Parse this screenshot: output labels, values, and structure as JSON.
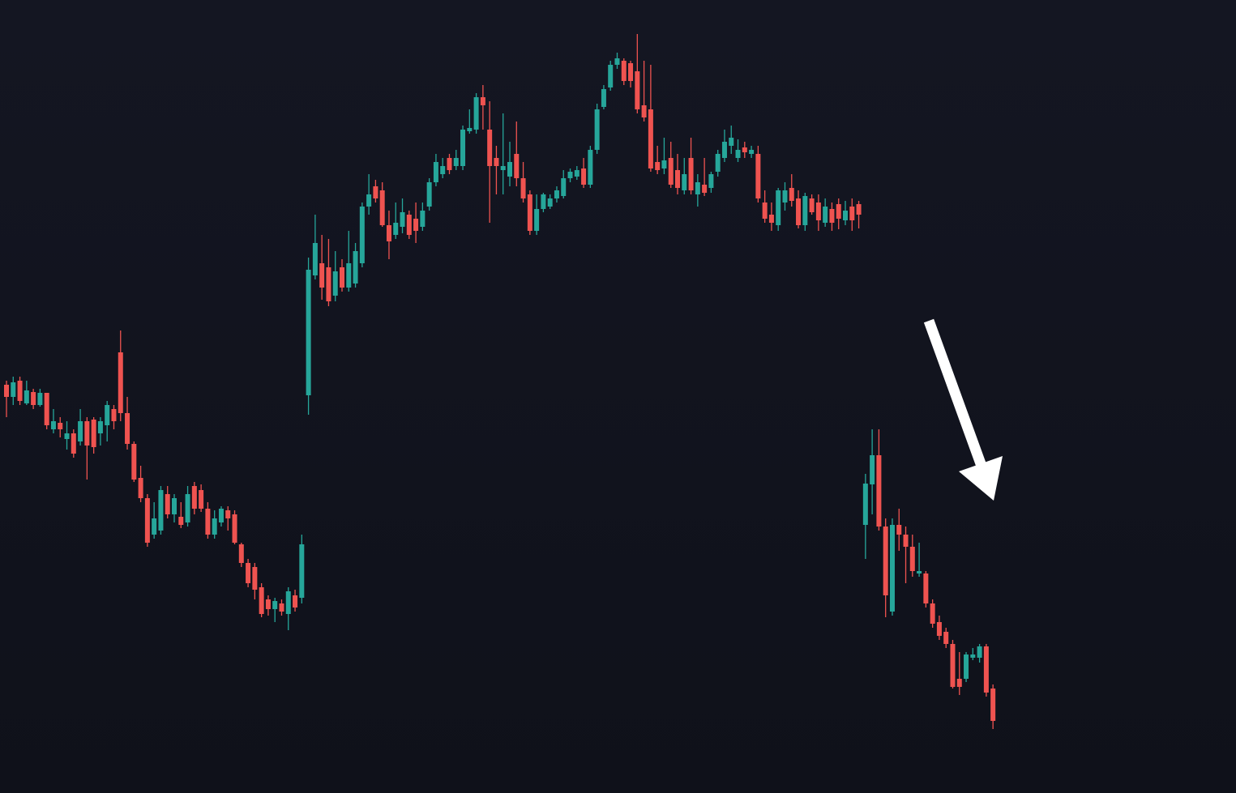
{
  "chart_data": {
    "type": "candlestick",
    "up_color": "#26a69a",
    "down_color": "#ef5350",
    "ylim": [
      0,
      980
    ],
    "open": [
      505,
      490,
      510,
      482,
      496,
      480,
      495,
      450,
      458,
      438,
      445,
      435,
      460,
      462,
      445,
      455,
      475,
      545,
      470,
      432,
      390,
      365,
      320,
      325,
      370,
      345,
      342,
      335,
      380,
      375,
      352,
      320,
      335,
      350,
      345,
      308,
      285,
      280,
      255,
      240,
      228,
      235,
      222,
      245,
      242,
      492,
      640,
      655,
      650,
      615,
      650,
      625,
      630,
      655,
      725,
      750,
      745,
      702,
      690,
      700,
      715,
      710,
      700,
      725,
      755,
      765,
      785,
      775,
      775,
      818,
      820,
      860,
      820,
      785,
      770,
      762,
      790,
      760,
      740,
      695,
      722,
      725,
      735,
      738,
      760,
      762,
      772,
      752,
      795,
      848,
      872,
      900,
      905,
      902,
      892,
      850,
      845,
      780,
      772,
      785,
      770,
      745,
      785,
      740,
      752,
      748,
      768,
      785,
      800,
      785,
      798,
      790,
      790,
      730,
      715,
      702,
      730,
      748,
      735,
      702,
      735,
      730,
      705,
      722,
      728,
      708,
      725,
      728,
      332,
      382,
      418,
      330,
      225,
      332,
      320,
      305,
      272,
      272,
      235,
      212,
      200,
      185,
      142,
      142,
      168,
      168,
      182,
      130
    ],
    "high": [
      510,
      515,
      515,
      510,
      500,
      500,
      495,
      475,
      465,
      460,
      450,
      475,
      465,
      465,
      465,
      485,
      480,
      572,
      490,
      435,
      405,
      370,
      360,
      380,
      380,
      370,
      360,
      380,
      385,
      382,
      360,
      350,
      355,
      355,
      350,
      310,
      290,
      285,
      260,
      245,
      242,
      240,
      255,
      252,
      320,
      662,
      715,
      690,
      685,
      670,
      660,
      695,
      680,
      730,
      765,
      758,
      755,
      720,
      730,
      735,
      720,
      730,
      730,
      760,
      790,
      785,
      790,
      795,
      825,
      845,
      865,
      875,
      855,
      800,
      840,
      805,
      830,
      780,
      745,
      740,
      742,
      740,
      750,
      770,
      772,
      775,
      785,
      800,
      852,
      875,
      905,
      915,
      908,
      905,
      938,
      905,
      900,
      800,
      810,
      805,
      790,
      785,
      810,
      765,
      785,
      768,
      795,
      820,
      825,
      808,
      805,
      800,
      800,
      745,
      730,
      748,
      755,
      765,
      745,
      742,
      740,
      740,
      735,
      730,
      735,
      732,
      735,
      732,
      395,
      450,
      450,
      340,
      340,
      352,
      330,
      320,
      310,
      275,
      240,
      220,
      205,
      190,
      175,
      175,
      180,
      185,
      185,
      135
    ],
    "low": [
      465,
      480,
      480,
      480,
      475,
      478,
      450,
      445,
      440,
      425,
      415,
      430,
      388,
      420,
      430,
      435,
      450,
      460,
      425,
      385,
      360,
      305,
      315,
      320,
      340,
      335,
      328,
      330,
      345,
      348,
      315,
      315,
      330,
      325,
      308,
      280,
      255,
      240,
      218,
      220,
      212,
      220,
      202,
      225,
      235,
      468,
      635,
      610,
      602,
      608,
      620,
      620,
      625,
      650,
      715,
      730,
      700,
      660,
      685,
      692,
      685,
      680,
      695,
      720,
      750,
      760,
      765,
      770,
      770,
      815,
      815,
      820,
      705,
      740,
      740,
      750,
      750,
      730,
      690,
      690,
      718,
      722,
      730,
      735,
      755,
      758,
      748,
      748,
      790,
      845,
      868,
      895,
      875,
      872,
      840,
      830,
      768,
      765,
      765,
      748,
      740,
      740,
      740,
      725,
      738,
      742,
      762,
      780,
      790,
      780,
      785,
      785,
      730,
      705,
      695,
      695,
      720,
      725,
      698,
      695,
      715,
      695,
      700,
      695,
      697,
      702,
      695,
      698,
      290,
      345,
      325,
      218,
      220,
      300,
      260,
      268,
      268,
      230,
      205,
      190,
      180,
      130,
      122,
      138,
      165,
      162,
      120,
      80
    ],
    "close": [
      490,
      508,
      485,
      498,
      480,
      495,
      455,
      460,
      450,
      445,
      420,
      460,
      430,
      428,
      460,
      480,
      460,
      470,
      432,
      388,
      365,
      310,
      340,
      375,
      345,
      365,
      332,
      370,
      352,
      352,
      320,
      340,
      352,
      340,
      310,
      285,
      260,
      252,
      222,
      228,
      238,
      225,
      250,
      230,
      308,
      647,
      680,
      625,
      608,
      645,
      625,
      655,
      670,
      725,
      740,
      735,
      702,
      682,
      705,
      718,
      690,
      695,
      720,
      755,
      780,
      775,
      770,
      785,
      820,
      822,
      860,
      850,
      775,
      775,
      775,
      780,
      760,
      735,
      695,
      722,
      740,
      735,
      745,
      760,
      768,
      770,
      752,
      795,
      845,
      870,
      900,
      908,
      880,
      880,
      845,
      835,
      772,
      770,
      782,
      752,
      748,
      765,
      745,
      755,
      742,
      765,
      790,
      805,
      810,
      795,
      792,
      795,
      735,
      710,
      705,
      745,
      745,
      732,
      702,
      738,
      718,
      708,
      725,
      705,
      710,
      720,
      708,
      715,
      383,
      418,
      330,
      245,
      332,
      320,
      305,
      275,
      275,
      235,
      210,
      195,
      185,
      132,
      132,
      172,
      172,
      182,
      125,
      90
    ]
  }
}
